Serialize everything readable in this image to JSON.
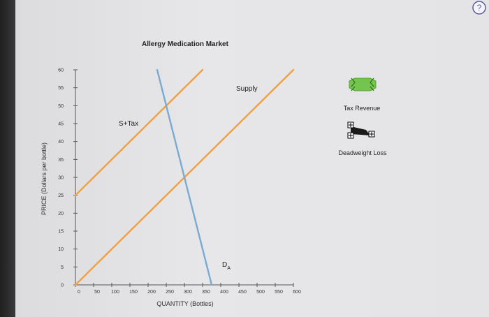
{
  "help": {
    "icon": "question-mark-icon",
    "color": "#5a5a9a"
  },
  "chart_data": {
    "type": "line",
    "title": "Allergy Medication Market",
    "xlabel": "QUANTITY (Bottles)",
    "ylabel": "PRICE (Dollars per bottle)",
    "xlim": [
      0,
      600
    ],
    "ylim": [
      0,
      60
    ],
    "xticks": [
      0,
      50,
      100,
      150,
      200,
      250,
      300,
      350,
      400,
      450,
      500,
      550,
      600
    ],
    "yticks": [
      0,
      5,
      10,
      15,
      20,
      25,
      30,
      35,
      40,
      45,
      50,
      55,
      60
    ],
    "series": [
      {
        "name": "Supply",
        "x": [
          0,
          600
        ],
        "y": [
          0,
          60
        ],
        "color": "#f0a040"
      },
      {
        "name": "S+Tax",
        "x": [
          0,
          350
        ],
        "y": [
          25,
          60
        ],
        "color": "#f0a040"
      },
      {
        "name": "D",
        "name_sub": "A",
        "x": [
          225,
          375
        ],
        "y": [
          60,
          0
        ],
        "color": "#7aaad0"
      }
    ]
  },
  "legend": {
    "tax_revenue": {
      "label": "Tax Revenue",
      "color": "#74c450",
      "icon": "tax-revenue-tool-icon"
    },
    "deadweight_loss": {
      "label": "Deadweight Loss",
      "color": "#1a1a1a",
      "icon": "deadweight-loss-tool-icon"
    }
  }
}
